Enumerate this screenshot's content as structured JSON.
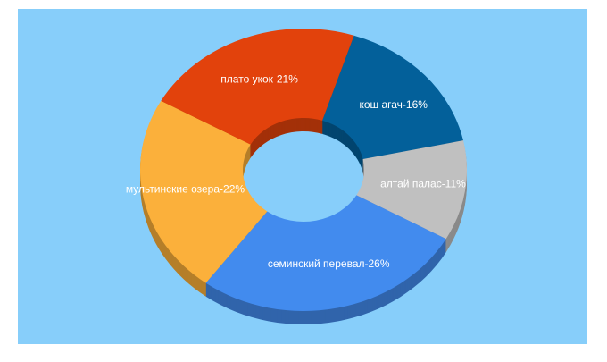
{
  "chart_data": {
    "type": "donut3d",
    "values": [
      16,
      11,
      26,
      22,
      21
    ],
    "value_labels": [
      "кош агач-16%",
      "алтай палас-11%",
      "семинский перевал-26%",
      "мультинские озера-22%",
      "плато укок-21%"
    ],
    "colors": [
      "#03609a",
      "#c0c0c0",
      "#428bee",
      "#fbb03b",
      "#e2420c"
    ]
  }
}
